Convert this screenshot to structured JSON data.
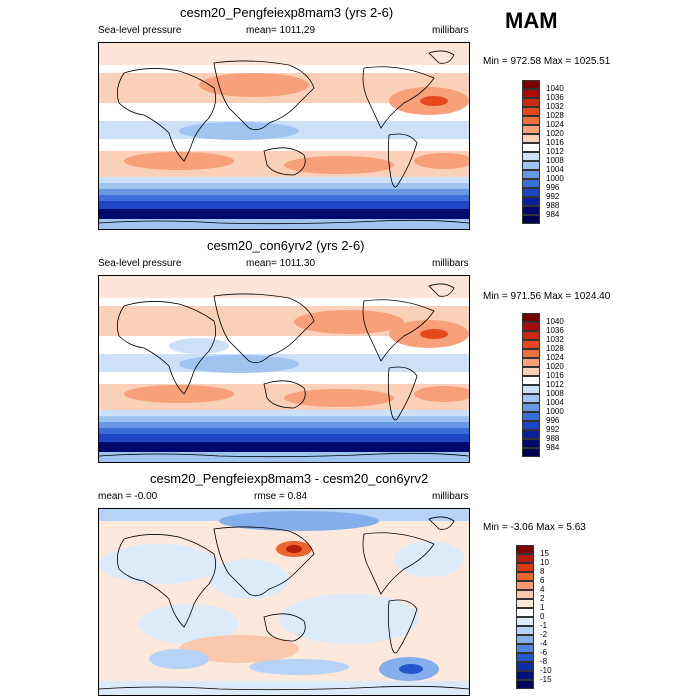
{
  "season": "MAM",
  "panels": [
    {
      "title": "cesm20_Pengfeiexp8mam3 (yrs 2-6)",
      "variable": "Sea-level pressure",
      "stat1": "mean= 1011.29",
      "units": "millibars",
      "minmax": "Min = 972.58 Max = 1025.51",
      "colorbar_labels": [
        "1040",
        "1036",
        "1032",
        "1028",
        "1024",
        "1020",
        "1016",
        "1012",
        "1008",
        "1004",
        "1000",
        "996",
        "992",
        "988",
        "984"
      ]
    },
    {
      "title": "cesm20_con6yrv2 (yrs 2-6)",
      "variable": "Sea-level pressure",
      "stat1": "mean= 1011.30",
      "units": "millibars",
      "minmax": "Min = 971.56 Max = 1024.40",
      "colorbar_labels": [
        "1040",
        "1036",
        "1032",
        "1028",
        "1024",
        "1020",
        "1016",
        "1012",
        "1008",
        "1004",
        "1000",
        "996",
        "992",
        "988",
        "984"
      ]
    },
    {
      "title": "cesm20_Pengfeiexp8mam3 - cesm20_con6yrv2",
      "stat1": "mean =  -0.00",
      "stat2": "rmse =  0.84",
      "units": "millibars",
      "minmax": "Min =  -3.06 Max =  5.63",
      "colorbar_labels": [
        "15",
        "10",
        "8",
        "6",
        "4",
        "2",
        "1",
        "0",
        "-1",
        "-2",
        "-4",
        "-6",
        "-8",
        "-10",
        "-15"
      ]
    }
  ],
  "colors": {
    "abs_scale": [
      "#7a0000",
      "#a80c0c",
      "#cc2a10",
      "#e4481c",
      "#f0703c",
      "#f7a07a",
      "#fbd0b8",
      "#ffffff",
      "#cce0f8",
      "#a0c4f0",
      "#6898e4",
      "#3c6ed8",
      "#1e46c4",
      "#0a209a",
      "#000a6e"
    ],
    "diff_scale": [
      "#7a0000",
      "#b41c0c",
      "#d83a16",
      "#ee6430",
      "#f59a72",
      "#fbc8ae",
      "#fde8dc",
      "#ffffff",
      "#dceafa",
      "#b6d2f4",
      "#84aeec",
      "#5284e0",
      "#2456cc",
      "#0c2ea8",
      "#00127e"
    ]
  }
}
